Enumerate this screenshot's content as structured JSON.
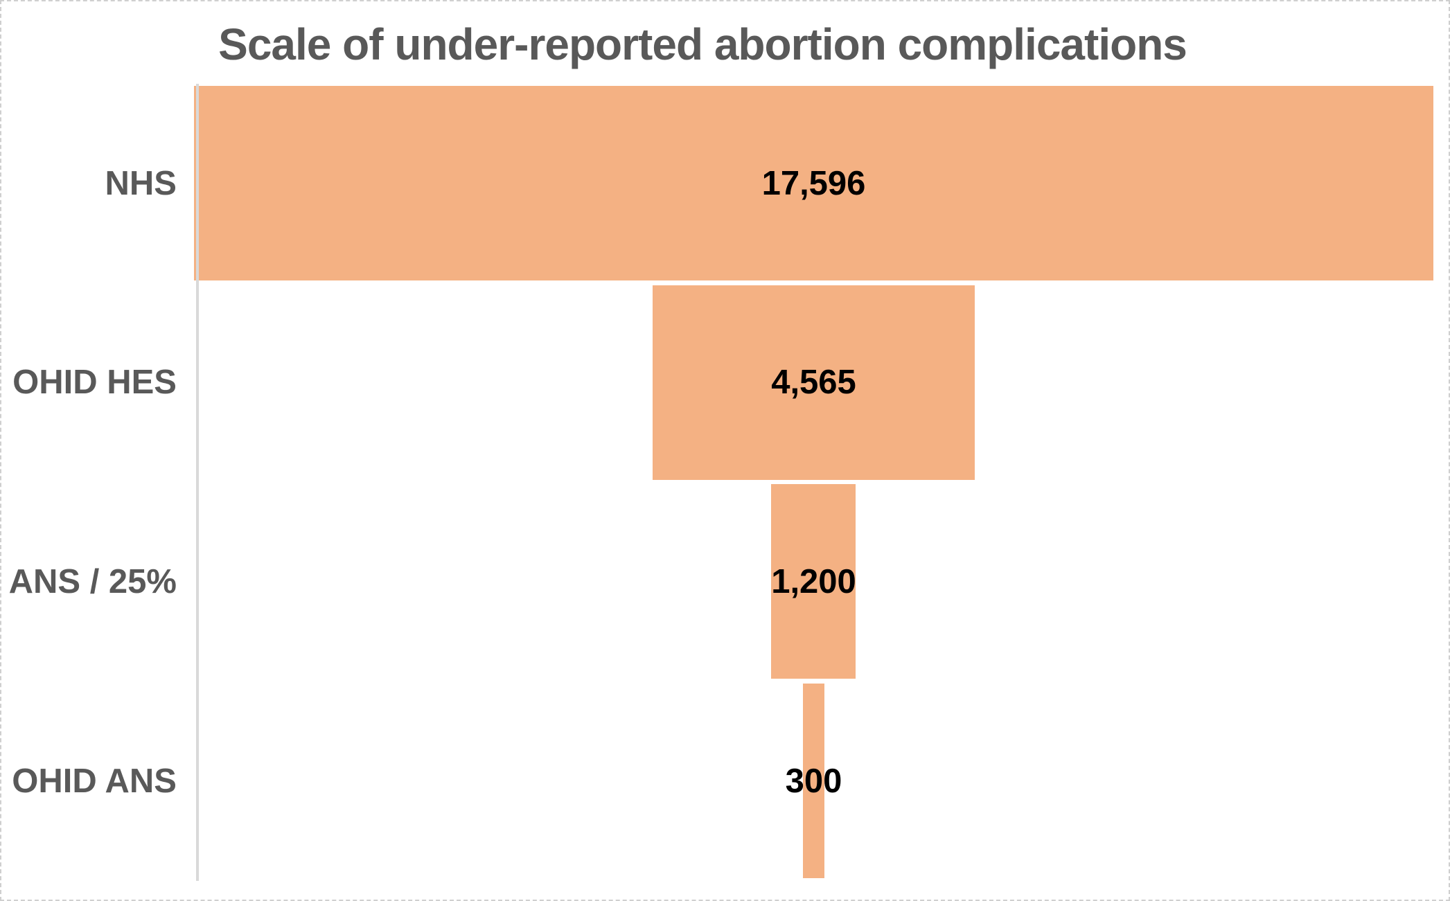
{
  "title": "Scale of under-reported abortion complications",
  "chart_data": {
    "type": "funnel",
    "title": "Scale of under-reported abortion complications",
    "categories": [
      "NHS",
      "OHID HES",
      "ANS / 25%",
      "OHID ANS"
    ],
    "values": [
      17596,
      4565,
      1200,
      300
    ],
    "value_labels": [
      "17,596",
      "4,565",
      "1,200",
      "300"
    ],
    "max_value": 17596,
    "orientation": "horizontal-centered",
    "bar_color": "#f4b183",
    "axis_line_color": "#d9d9d9",
    "category_label_color": "#595959",
    "value_label_color": "#000000",
    "title_color": "#595959",
    "background_color": "#ffffff",
    "grid": false,
    "legend": "none"
  }
}
